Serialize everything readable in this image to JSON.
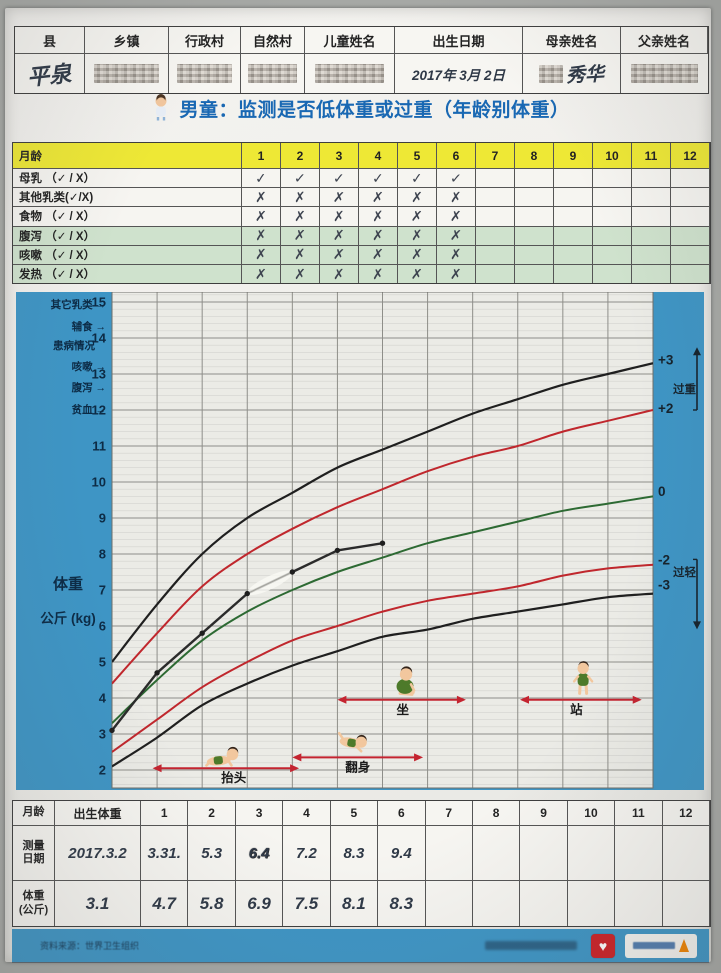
{
  "colors": {
    "sidebar_blue": "#3e95c5",
    "title_blue": "#1968b3",
    "yellow": "#eee835",
    "green_row": "#cfe2cd",
    "arrow_red": "#c42430",
    "ink": "#2f3947"
  },
  "title": {
    "text": "男童：监测是否低体重或过重（年龄别体重）"
  },
  "header_table": {
    "columns": [
      "县",
      "乡镇",
      "行政村",
      "自然村",
      "儿童姓名",
      "出生日期",
      "母亲姓名",
      "父亲姓名"
    ],
    "values": [
      {
        "text": "平泉",
        "redacted": false
      },
      {
        "text": "",
        "redacted": true
      },
      {
        "text": "",
        "redacted": true
      },
      {
        "text": "",
        "redacted": true
      },
      {
        "text": "",
        "redacted": true
      },
      {
        "text": "2017年 3月 2日",
        "redacted": false
      },
      {
        "text": "秀华",
        "redacted": "partial"
      },
      {
        "text": "",
        "redacted": true
      }
    ]
  },
  "feeding_table": {
    "header_label": "月龄",
    "months": [
      "1",
      "2",
      "3",
      "4",
      "5",
      "6",
      "7",
      "8",
      "9",
      "10",
      "11",
      "12"
    ],
    "rows": [
      {
        "label": "母乳 （✓ / X）",
        "green": false,
        "marks": [
          "✓",
          "✓",
          "✓",
          "✓",
          "✓",
          "✓",
          "",
          "",
          "",
          "",
          "",
          ""
        ]
      },
      {
        "label": "其他乳类(✓/X)",
        "green": false,
        "marks": [
          "✗",
          "✗",
          "✗",
          "✗",
          "✗",
          "✗",
          "",
          "",
          "",
          "",
          "",
          ""
        ]
      },
      {
        "label": "食物 （✓ / X）",
        "green": false,
        "marks": [
          "✗",
          "✗",
          "✗",
          "✗",
          "✗",
          "✗",
          "",
          "",
          "",
          "",
          "",
          ""
        ]
      },
      {
        "label": "腹泻 （✓ / X）",
        "green": true,
        "marks": [
          "✗",
          "✗",
          "✗",
          "✗",
          "✗",
          "✗",
          "",
          "",
          "",
          "",
          "",
          ""
        ]
      },
      {
        "label": "咳嗽 （✓ / X）",
        "green": true,
        "marks": [
          "✗",
          "✗",
          "✗",
          "✗",
          "✗",
          "✗",
          "",
          "",
          "",
          "",
          "",
          ""
        ]
      },
      {
        "label": "发热 （✓ / X）",
        "green": true,
        "marks": [
          "✗",
          "✗",
          "✗",
          "✗",
          "✗",
          "✗",
          "",
          "",
          "",
          "",
          "",
          ""
        ]
      }
    ]
  },
  "chart_data": {
    "type": "line",
    "title": "男童：监测是否低体重或过重（年龄别体重）",
    "xlabel": "月龄",
    "ylabel_lines": [
      "体重",
      "公斤 (kg)"
    ],
    "x_range": [
      0,
      12
    ],
    "y_range": [
      2,
      15
    ],
    "grid": true,
    "y_ticks": [
      15,
      14,
      13,
      12,
      11,
      10,
      9,
      8,
      7,
      6,
      5,
      4,
      3,
      2
    ],
    "sidebar_labels": [
      "其它乳类 →",
      "辅食 →",
      "患病情况",
      "咳嗽 →",
      "腹泻 →",
      "贫血 →"
    ],
    "right_axis": {
      "labels": [
        {
          "text": "+3",
          "kg": 13.4
        },
        {
          "text": "+2",
          "kg": 12.05
        },
        {
          "text": "0",
          "kg": 9.75
        },
        {
          "text": "-2",
          "kg": 7.85
        },
        {
          "text": "-3",
          "kg": 7.15
        }
      ],
      "overweight_label": "过重",
      "underweight_label": "过轻"
    },
    "x": [
      0,
      1,
      2,
      3,
      4,
      5,
      6,
      7,
      8,
      9,
      10,
      11,
      12
    ],
    "series": [
      {
        "name": "+3SD",
        "color": "#1f1f1f",
        "values": [
          5.0,
          6.6,
          8.0,
          9.0,
          9.7,
          10.4,
          10.9,
          11.4,
          11.9,
          12.3,
          12.7,
          13.0,
          13.3
        ]
      },
      {
        "name": "+2SD",
        "color": "#c0272d",
        "values": [
          4.4,
          5.8,
          7.1,
          8.0,
          8.7,
          9.3,
          9.8,
          10.3,
          10.7,
          11.0,
          11.4,
          11.7,
          12.0
        ]
      },
      {
        "name": "median",
        "color": "#2d6a33",
        "values": [
          3.3,
          4.5,
          5.6,
          6.4,
          7.0,
          7.5,
          7.9,
          8.3,
          8.6,
          8.9,
          9.2,
          9.4,
          9.6
        ]
      },
      {
        "name": "-2SD",
        "color": "#c0272d",
        "values": [
          2.5,
          3.4,
          4.3,
          5.0,
          5.6,
          6.0,
          6.4,
          6.7,
          6.9,
          7.1,
          7.4,
          7.6,
          7.7
        ]
      },
      {
        "name": "-3SD",
        "color": "#1f1f1f",
        "values": [
          2.1,
          2.9,
          3.8,
          4.4,
          4.9,
          5.3,
          5.7,
          5.9,
          6.2,
          6.4,
          6.6,
          6.8,
          6.9
        ]
      }
    ],
    "child_series": {
      "name": "儿童体重记录",
      "color": "#2b2b2b",
      "x": [
        0,
        1,
        2,
        3,
        4,
        5,
        6
      ],
      "values": [
        3.1,
        4.7,
        5.8,
        6.9,
        7.5,
        8.1,
        8.3
      ],
      "correction_between": [
        3,
        4
      ]
    },
    "milestones": [
      {
        "label": "抬头",
        "x_from": 0.9,
        "x_to": 4.15,
        "arrow_kg": 2.05,
        "label_x": 2.7,
        "baby_x": 2.45,
        "baby_kg": 2.1,
        "pose": "prone"
      },
      {
        "label": "翻身",
        "x_from": 4.0,
        "x_to": 6.9,
        "arrow_kg": 2.35,
        "label_x": 5.45,
        "baby_x": 5.35,
        "baby_kg": 2.55,
        "pose": "rolling"
      },
      {
        "label": "坐",
        "x_from": 5.0,
        "x_to": 7.85,
        "arrow_kg": 3.95,
        "label_x": 6.45,
        "baby_x": 6.5,
        "baby_kg": 4.1,
        "pose": "sitting"
      },
      {
        "label": "站",
        "x_from": 9.05,
        "x_to": 11.75,
        "arrow_kg": 3.95,
        "label_x": 10.3,
        "baby_x": 10.45,
        "baby_kg": 4.1,
        "pose": "standing"
      }
    ]
  },
  "measurement_table": {
    "corner_label": "月龄",
    "birth_label": "出生体重",
    "months": [
      "1",
      "2",
      "3",
      "4",
      "5",
      "6",
      "7",
      "8",
      "9",
      "10",
      "11",
      "12"
    ],
    "rows": [
      {
        "label_lines": [
          "测量",
          "日期"
        ],
        "birth": "2017.3.2",
        "heavy_index": 2,
        "values": [
          "3.31.",
          "5.3",
          "6.4",
          "7.2",
          "8.3",
          "9.4",
          "",
          "",
          "",
          "",
          "",
          ""
        ]
      },
      {
        "label_lines": [
          "体重",
          "(公斤)"
        ],
        "birth": "3.1",
        "heavy_index": -1,
        "values": [
          "4.7",
          "5.8",
          "6.9",
          "7.5",
          "8.1",
          "8.3",
          "",
          "",
          "",
          "",
          "",
          ""
        ]
      }
    ]
  },
  "footer": {
    "source_text": "资料来源：世界卫生组织",
    "right_text_redacted": true
  }
}
